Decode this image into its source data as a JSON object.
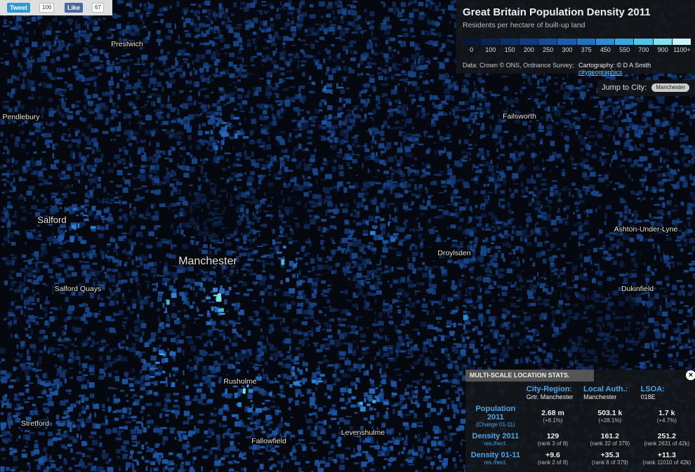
{
  "social": {
    "tweet": {
      "label": "Tweet",
      "count": "106"
    },
    "like": {
      "label": "Like",
      "count": "67"
    }
  },
  "legend": {
    "title": "Great Britain Population Density 2011",
    "subtitle": "Residents per hectare of built-up land",
    "scale": {
      "labels": [
        "0",
        "100",
        "150",
        "200",
        "250",
        "300",
        "375",
        "450",
        "550",
        "700",
        "900",
        "1100+"
      ],
      "colors": [
        "#08183a",
        "#0b2350",
        "#0f2f68",
        "#133c80",
        "#184b98",
        "#1d5bb0",
        "#2470c4",
        "#2d8ad4",
        "#3aa6df",
        "#52c4e8",
        "#80e0ee",
        "#c8f6f8"
      ]
    },
    "data_credit": "Data: Crown © ONS, Ordnance Survey;",
    "cartography": "Cartography: © D A Smith",
    "link": "citygeographics"
  },
  "jump": {
    "label": "Jump to City:",
    "selected": "Manchester"
  },
  "places": [
    "Prestwich",
    "Pendlebury",
    "Failsworth",
    "Salford",
    "Manchester",
    "Salford Quays",
    "Droylsden",
    "Ashton-Under-Lyne",
    "Dukinfield",
    "Rusholme",
    "Stretford",
    "Fallowfield",
    "Levenshulme"
  ],
  "stats": {
    "title": "MULTI-SCALE LOCATION STATS.",
    "columns": [
      {
        "name": "City-Region:",
        "sub": "Grtr. Manchester"
      },
      {
        "name": "Local Auth.:",
        "sub": "Manchester"
      },
      {
        "name": "LSOA:",
        "sub": "018E"
      }
    ],
    "rows": [
      {
        "label": "Population 2011",
        "sub": "(Change 01-11)",
        "cells": [
          [
            "2.68 m",
            "(+8.1%)"
          ],
          [
            "503.1 k",
            "(+28.1%)"
          ],
          [
            "1.7 k",
            "(+4.7%)"
          ]
        ]
      },
      {
        "label": "Density 2011",
        "sub": "res./hect.",
        "cells": [
          [
            "129",
            "(rank 3 of 8)"
          ],
          [
            "161.2",
            "(rank 32 of 379)"
          ],
          [
            "251.2",
            "(rank 2631 of 42k)"
          ]
        ]
      },
      {
        "label": "Density 01-11",
        "sub": "res./hect.",
        "cells": [
          [
            "+9.6",
            "(rank 2 of 8)"
          ],
          [
            "+35.3",
            "(rank 8 of 379)"
          ],
          [
            "+11.3",
            "(rank 11010 of 42k)"
          ]
        ]
      }
    ]
  }
}
